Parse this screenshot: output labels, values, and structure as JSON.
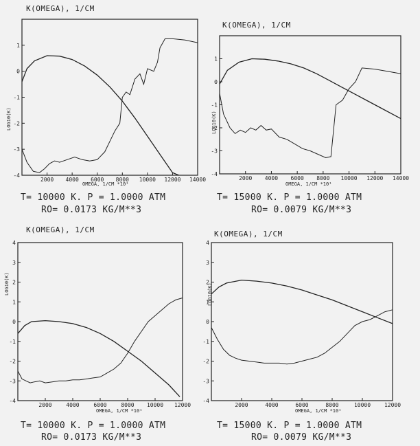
{
  "charts": [
    {
      "title": "K(OMEGA), 1/CM",
      "ylabel": "LOG10(K)",
      "xlabel": "OMEGA, 1/CM *10¹",
      "caption_line1": "T= 10000 K.   P = 1.0000   ATM",
      "caption_line2": "RO= 0.0173  KG/M**3"
    },
    {
      "title": "K(OMEGA), 1/CM",
      "ylabel": "LOG10(K)",
      "xlabel": "OMEGA, 1/CM *10¹",
      "caption_line1": "T= 15000 K.   P = 1.0000   ATM",
      "caption_line2": "RO= 0.0079  KG/M**3"
    },
    {
      "title": "K(OMEGA), 1/CM",
      "ylabel": "LOG10(K)",
      "xlabel": "OMEGA, 1/CM *10¹",
      "caption_line1": "T= 10000 K.   P = 1.0000   ATM",
      "caption_line2": "RO= 0.0173  KG/M**3"
    },
    {
      "title": "K(OMEGA), 1/CM",
      "ylabel": "LOG10(K)",
      "xlabel": "OMEGA, 1/CM *10¹",
      "caption_line1": "T= 15000 K.   P = 1.0000   ATM",
      "caption_line2": "RO= 0.0079  KG/M**3"
    }
  ],
  "chart_data": [
    {
      "type": "line",
      "title": "K(OMEGA), 1/CM",
      "xlabel": "OMEGA, 1/CM *10¹",
      "ylabel": "LOG10(K)",
      "xlim": [
        0,
        14000
      ],
      "ylim": [
        -4,
        2
      ],
      "x_ticks": [
        2000,
        4000,
        6000,
        8000,
        10000,
        12000,
        14000
      ],
      "y_ticks": [
        -4,
        -3,
        -2,
        -1,
        0,
        1
      ],
      "grid": false,
      "series": [
        {
          "x": [
            0,
            400,
            1000,
            2000,
            3000,
            4000,
            5000,
            6000,
            7000,
            8000,
            9000,
            10000,
            11000,
            12000,
            12500
          ],
          "y": [
            -0.4,
            0.1,
            0.4,
            0.6,
            0.58,
            0.45,
            0.2,
            -0.15,
            -0.6,
            -1.15,
            -1.8,
            -2.5,
            -3.2,
            -3.9,
            -4.0
          ]
        },
        {
          "x": [
            0,
            400,
            900,
            1400,
            1800,
            2200,
            2600,
            3000,
            3600,
            4200,
            4800,
            5400,
            6000,
            6600,
            7000,
            7400,
            7800,
            8000,
            8300,
            8600,
            9000,
            9400,
            9700,
            10000,
            10500,
            10800,
            11000,
            11400,
            12000,
            13000,
            14000
          ],
          "y": [
            -3.0,
            -3.5,
            -3.85,
            -3.9,
            -3.75,
            -3.55,
            -3.45,
            -3.5,
            -3.4,
            -3.3,
            -3.4,
            -3.45,
            -3.4,
            -3.1,
            -2.7,
            -2.3,
            -2.0,
            -1.0,
            -0.8,
            -0.9,
            -0.3,
            -0.1,
            -0.5,
            0.1,
            0.0,
            0.35,
            0.9,
            1.25,
            1.25,
            1.2,
            1.1
          ]
        }
      ]
    },
    {
      "type": "line",
      "title": "K(OMEGA), 1/CM",
      "xlabel": "OMEGA, 1/CM *10¹",
      "ylabel": "LOG10(K)",
      "xlim": [
        0,
        14000
      ],
      "ylim": [
        -4,
        2
      ],
      "x_ticks": [
        2000,
        4000,
        6000,
        8000,
        10000,
        12000,
        14000
      ],
      "y_ticks": [
        -4,
        -3,
        -2,
        -1,
        0,
        1
      ],
      "grid": false,
      "series": [
        {
          "x": [
            0,
            600,
            1500,
            2500,
            3500,
            4500,
            5500,
            6500,
            7500,
            8500,
            9500,
            10500,
            11500,
            12500,
            13500,
            14000
          ],
          "y": [
            -0.1,
            0.5,
            0.85,
            1.0,
            0.98,
            0.9,
            0.78,
            0.6,
            0.35,
            0.05,
            -0.25,
            -0.55,
            -0.85,
            -1.15,
            -1.45,
            -1.6
          ]
        },
        {
          "x": [
            0,
            300,
            800,
            1200,
            1600,
            2000,
            2400,
            2800,
            3200,
            3600,
            4000,
            4600,
            5200,
            5800,
            6400,
            7000,
            7600,
            8200,
            8600,
            9000,
            9500,
            10000,
            10500,
            11000,
            12000,
            13000,
            14000
          ],
          "y": [
            -0.5,
            -1.4,
            -2.0,
            -2.25,
            -2.1,
            -2.2,
            -2.0,
            -2.1,
            -1.9,
            -2.1,
            -2.05,
            -2.4,
            -2.5,
            -2.7,
            -2.9,
            -3.0,
            -3.15,
            -3.3,
            -3.25,
            -1.0,
            -0.8,
            -0.3,
            0.0,
            0.6,
            0.55,
            0.45,
            0.35
          ]
        }
      ]
    },
    {
      "type": "line",
      "title": "K(OMEGA), 1/CM",
      "xlabel": "OMEGA, 1/CM *10¹",
      "ylabel": "LOG10(K)",
      "xlim": [
        0,
        12000
      ],
      "ylim": [
        -4,
        4
      ],
      "x_ticks": [
        2000,
        4000,
        6000,
        8000,
        10000,
        12000
      ],
      "y_ticks": [
        -4,
        -3,
        -2,
        -1,
        0,
        1,
        2,
        3,
        4
      ],
      "grid": false,
      "series": [
        {
          "x": [
            0,
            500,
            1000,
            2000,
            3000,
            4000,
            5000,
            6000,
            7000,
            8000,
            9000,
            10000,
            11000,
            11800
          ],
          "y": [
            -0.6,
            -0.2,
            0.0,
            0.05,
            0.0,
            -0.1,
            -0.3,
            -0.6,
            -1.0,
            -1.5,
            -2.0,
            -2.6,
            -3.2,
            -3.8
          ]
        },
        {
          "x": [
            0,
            300,
            600,
            900,
            1200,
            1600,
            2000,
            2500,
            3000,
            3500,
            4000,
            4500,
            5000,
            5500,
            6000,
            6500,
            7000,
            7500,
            8000,
            8500,
            9000,
            9500,
            10000,
            10500,
            11000,
            11500,
            12000
          ],
          "y": [
            -2.5,
            -2.9,
            -3.0,
            -3.1,
            -3.05,
            -3.0,
            -3.1,
            -3.05,
            -3.0,
            -3.0,
            -2.95,
            -2.95,
            -2.9,
            -2.85,
            -2.8,
            -2.6,
            -2.4,
            -2.1,
            -1.6,
            -1.0,
            -0.5,
            0.0,
            0.3,
            0.6,
            0.9,
            1.1,
            1.2
          ]
        }
      ]
    },
    {
      "type": "line",
      "title": "K(OMEGA), 1/CM",
      "xlabel": "OMEGA, 1/CM *10¹",
      "ylabel": "LOG10(K)",
      "xlim": [
        0,
        12000
      ],
      "ylim": [
        -4,
        4
      ],
      "x_ticks": [
        2000,
        4000,
        6000,
        8000,
        10000,
        12000
      ],
      "y_ticks": [
        -4,
        -3,
        -2,
        -1,
        0,
        1,
        2,
        3,
        4
      ],
      "grid": false,
      "series": [
        {
          "x": [
            0,
            500,
            1000,
            2000,
            3000,
            4000,
            5000,
            6000,
            7000,
            8000,
            9000,
            10000,
            11000,
            12000
          ],
          "y": [
            1.4,
            1.75,
            1.95,
            2.1,
            2.05,
            1.95,
            1.8,
            1.6,
            1.35,
            1.1,
            0.8,
            0.5,
            0.2,
            -0.1
          ]
        },
        {
          "x": [
            0,
            400,
            800,
            1200,
            1600,
            2000,
            2500,
            3000,
            3500,
            4000,
            4500,
            5000,
            5500,
            6000,
            6500,
            7000,
            7500,
            8000,
            8500,
            9000,
            9500,
            10000,
            10500,
            11000,
            11500,
            12000
          ],
          "y": [
            -0.3,
            -0.9,
            -1.4,
            -1.7,
            -1.85,
            -1.95,
            -2.0,
            -2.05,
            -2.1,
            -2.1,
            -2.1,
            -2.15,
            -2.1,
            -2.0,
            -1.9,
            -1.8,
            -1.6,
            -1.3,
            -1.0,
            -0.6,
            -0.2,
            0.0,
            0.1,
            0.3,
            0.5,
            0.6
          ]
        }
      ]
    }
  ]
}
